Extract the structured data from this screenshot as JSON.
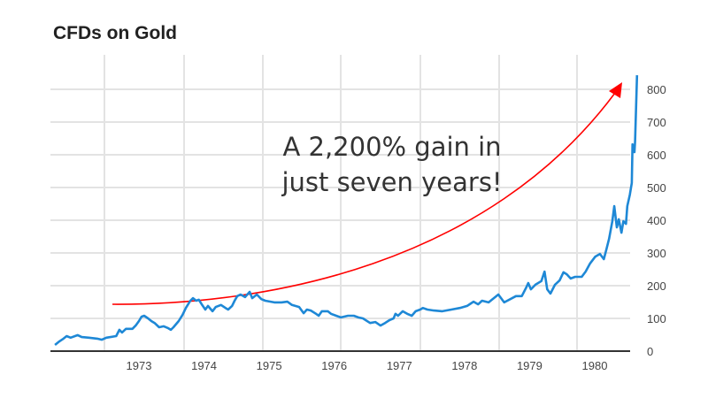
{
  "chart_data": {
    "type": "line",
    "title": "CFDs on Gold",
    "xlabel": "",
    "ylabel": "",
    "ylim": [
      0,
      850
    ],
    "yticks": [
      0,
      100,
      200,
      300,
      400,
      500,
      600,
      700,
      800
    ],
    "xticks": [
      "1973",
      "1974",
      "1975",
      "1976",
      "1977",
      "1978",
      "1979",
      "1980"
    ],
    "grid": true,
    "y_axis_position": "right",
    "line_color": "#1e88d6",
    "annotation": {
      "lines": [
        "A 2,200% gain in",
        "just seven years!"
      ],
      "arrow_color": "#ff0000"
    },
    "series": [
      {
        "x": [
          1971.71,
          1971.78,
          1971.84,
          1971.89,
          1971.95,
          1972.06,
          1972.12,
          1972.23,
          1972.36,
          1972.43,
          1972.5,
          1972.65,
          1972.7,
          1972.74,
          1972.8,
          1972.9,
          1972.95,
          1973.0,
          1973.04,
          1973.08,
          1973.14,
          1973.19,
          1973.24,
          1973.31,
          1973.38,
          1973.45,
          1973.49,
          1973.53,
          1973.61,
          1973.67,
          1973.72,
          1973.79,
          1973.83,
          1973.88,
          1973.92,
          1973.97,
          1974.02,
          1974.06,
          1974.13,
          1974.18,
          1974.26,
          1974.33,
          1974.37,
          1974.43,
          1974.47,
          1974.51,
          1974.56,
          1974.63,
          1974.7,
          1974.74,
          1974.81,
          1974.88,
          1974.94,
          1975.08,
          1975.19,
          1975.28,
          1975.35,
          1975.46,
          1975.53,
          1975.58,
          1975.64,
          1975.72,
          1975.76,
          1975.81,
          1975.9,
          1975.95,
          1976.03,
          1976.1,
          1976.21,
          1976.3,
          1976.37,
          1976.44,
          1976.55,
          1976.63,
          1976.71,
          1976.78,
          1976.85,
          1976.91,
          1976.94,
          1976.98,
          1977.05,
          1977.12,
          1977.19,
          1977.25,
          1977.32,
          1977.36,
          1977.43,
          1977.53,
          1977.66,
          1977.8,
          1977.93,
          1978.04,
          1978.1,
          1978.14,
          1978.21,
          1978.27,
          1978.37,
          1978.52,
          1978.61,
          1978.79,
          1978.88,
          1978.95,
          1978.98,
          1979.02,
          1979.09,
          1979.18,
          1979.23,
          1979.27,
          1979.32,
          1979.39,
          1979.46,
          1979.52,
          1979.57,
          1979.63,
          1979.7,
          1979.8,
          1979.86,
          1979.93,
          1980.01,
          1980.08,
          1980.14,
          1980.18,
          1980.22,
          1980.27,
          1980.3,
          1980.34,
          1980.37,
          1980.41,
          1980.44,
          1980.48,
          1980.5,
          1980.54,
          1980.57,
          1980.58,
          1980.61,
          1980.62,
          1980.65
        ],
        "y": [
          19,
          30,
          38,
          46,
          41,
          49,
          43,
          41,
          38,
          35,
          41,
          46,
          65,
          57,
          68,
          68,
          78,
          92,
          105,
          108,
          100,
          92,
          86,
          73,
          76,
          70,
          65,
          73,
          92,
          111,
          132,
          154,
          162,
          154,
          157,
          141,
          127,
          138,
          122,
          135,
          141,
          132,
          127,
          138,
          154,
          168,
          173,
          165,
          181,
          162,
          173,
          159,
          154,
          149,
          149,
          151,
          141,
          135,
          116,
          127,
          124,
          114,
          108,
          122,
          122,
          114,
          108,
          103,
          108,
          108,
          103,
          100,
          86,
          89,
          78,
          86,
          95,
          100,
          114,
          108,
          122,
          114,
          108,
          122,
          127,
          132,
          127,
          124,
          122,
          127,
          132,
          138,
          146,
          151,
          143,
          154,
          149,
          173,
          149,
          168,
          168,
          195,
          208,
          189,
          203,
          214,
          243,
          189,
          176,
          203,
          216,
          241,
          235,
          222,
          227,
          227,
          243,
          268,
          289,
          297,
          281,
          311,
          343,
          397,
          443,
          378,
          403,
          362,
          397,
          389,
          443,
          478,
          514,
          632,
          608,
          641,
          843
        ]
      }
    ]
  }
}
